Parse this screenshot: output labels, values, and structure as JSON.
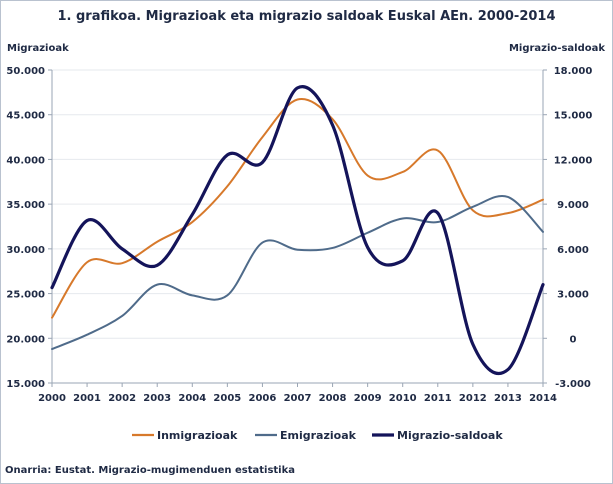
{
  "chart_data": {
    "type": "line",
    "title": "1. grafikoa. Migrazioak eta migrazio saldoak Euskal AEn. 2000-2014",
    "ylabel": "Migrazioak",
    "y2label": "Migrazio-saldoak",
    "source": "Onarria: Eustat. Migrazio-mugimenduen estatistika",
    "categories": [
      "2000",
      "2001",
      "2002",
      "2003",
      "2004",
      "2005",
      "2006",
      "2007",
      "2008",
      "2009",
      "2010",
      "2011",
      "2012",
      "2013",
      "2014"
    ],
    "ylim": [
      15000,
      50000
    ],
    "y2lim": [
      -3000,
      18000
    ],
    "yticks": [
      15000,
      20000,
      25000,
      30000,
      35000,
      40000,
      45000,
      50000
    ],
    "yticklabels": [
      "15.000",
      "20.000",
      "25.000",
      "30.000",
      "35.000",
      "40.000",
      "45.000",
      "50.000"
    ],
    "y2ticks": [
      -3000,
      0,
      3000,
      6000,
      9000,
      12000,
      15000,
      18000
    ],
    "y2ticklabels": [
      "-3.000",
      "0",
      "3.000",
      "6.000",
      "9.000",
      "12.000",
      "15.000",
      "18.000"
    ],
    "series": [
      {
        "name": "Inmigrazioak",
        "axis": "left",
        "color": "#d7792b",
        "values": [
          22300,
          28500,
          28400,
          30800,
          33000,
          37000,
          42500,
          46700,
          44500,
          38200,
          38600,
          41000,
          34300,
          34000,
          35500
        ]
      },
      {
        "name": "Emigrazioak",
        "axis": "left",
        "color": "#4f6b8a",
        "values": [
          18800,
          20400,
          22500,
          26000,
          24800,
          24800,
          30700,
          29900,
          30100,
          31800,
          33400,
          33000,
          34700,
          35800,
          31900
        ]
      },
      {
        "name": "Migrazio-saldoak",
        "axis": "right",
        "color": "#14145a",
        "values": [
          3400,
          7900,
          6000,
          4900,
          8300,
          12300,
          11800,
          16800,
          14300,
          6100,
          5200,
          8400,
          -400,
          -2100,
          3600
        ]
      }
    ],
    "legend": [
      "Inmigrazioak",
      "Emigrazioak",
      "Migrazio-saldoak"
    ]
  }
}
